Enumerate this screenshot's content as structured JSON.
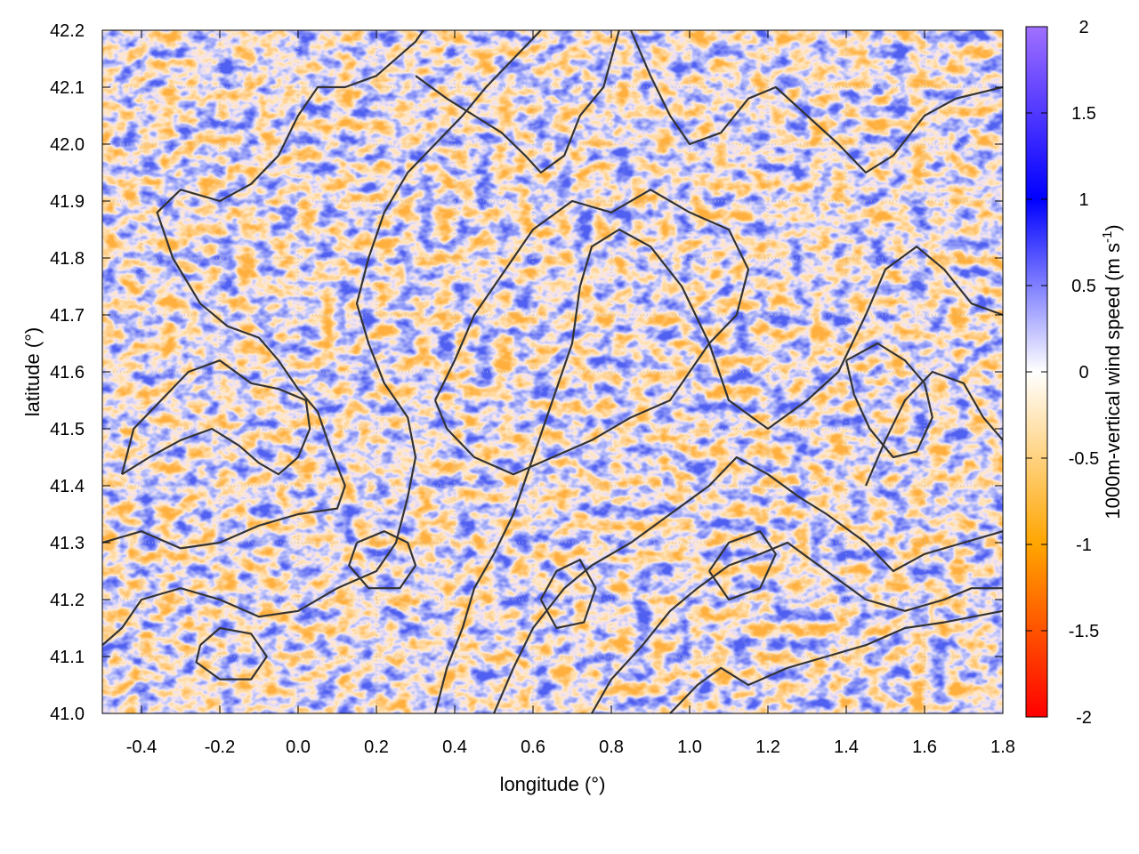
{
  "chart_data": {
    "type": "heatmap",
    "title": "",
    "xlabel": "longitude (°)",
    "ylabel": "latitude (°)",
    "colorbar_label_main": "1000m-vertical wind speed (m s",
    "colorbar_label_sup": "-1",
    "colorbar_label_close": ")",
    "xlim": [
      -0.5,
      1.8
    ],
    "ylim": [
      41.0,
      42.2
    ],
    "clim": [
      -2,
      2
    ],
    "x_ticks": [
      {
        "value": -0.4,
        "label": "-0.4"
      },
      {
        "value": -0.2,
        "label": "-0.2"
      },
      {
        "value": 0.0,
        "label": "0.0"
      },
      {
        "value": 0.2,
        "label": "0.2"
      },
      {
        "value": 0.4,
        "label": "0.4"
      },
      {
        "value": 0.6,
        "label": "0.6"
      },
      {
        "value": 0.8,
        "label": "0.8"
      },
      {
        "value": 1.0,
        "label": "1.0"
      },
      {
        "value": 1.2,
        "label": "1.2"
      },
      {
        "value": 1.4,
        "label": "1.4"
      },
      {
        "value": 1.6,
        "label": "1.6"
      },
      {
        "value": 1.8,
        "label": "1.8"
      }
    ],
    "y_ticks": [
      {
        "value": 41.0,
        "label": "41.0"
      },
      {
        "value": 41.1,
        "label": "41.1"
      },
      {
        "value": 41.2,
        "label": "41.2"
      },
      {
        "value": 41.3,
        "label": "41.3"
      },
      {
        "value": 41.4,
        "label": "41.4"
      },
      {
        "value": 41.5,
        "label": "41.5"
      },
      {
        "value": 41.6,
        "label": "41.6"
      },
      {
        "value": 41.7,
        "label": "41.7"
      },
      {
        "value": 41.8,
        "label": "41.8"
      },
      {
        "value": 41.9,
        "label": "41.9"
      },
      {
        "value": 42.0,
        "label": "42.0"
      },
      {
        "value": 42.1,
        "label": "42.1"
      },
      {
        "value": 42.2,
        "label": "42.2"
      }
    ],
    "colorbar_ticks": [
      {
        "value": 2,
        "label": "2"
      },
      {
        "value": 1.5,
        "label": "1.5"
      },
      {
        "value": 1,
        "label": "1"
      },
      {
        "value": 0.5,
        "label": "0.5"
      },
      {
        "value": 0,
        "label": "0"
      },
      {
        "value": -0.5,
        "label": "-0.5"
      },
      {
        "value": -1,
        "label": "-1"
      },
      {
        "value": -1.5,
        "label": "-1.5"
      },
      {
        "value": -2,
        "label": "-2"
      }
    ],
    "colormap": [
      {
        "value": -2,
        "color": "#ff0000"
      },
      {
        "value": -1,
        "color": "#ffa500"
      },
      {
        "value": 0,
        "color": "#ffffff"
      },
      {
        "value": 1,
        "color": "#0000ff"
      },
      {
        "value": 2,
        "color": "#a070ff"
      }
    ],
    "grid": true,
    "contour_color": "#333333",
    "contours": [
      {
        "points": [
          [
            -0.5,
            41.3
          ],
          [
            -0.4,
            41.32
          ],
          [
            -0.3,
            41.29
          ],
          [
            -0.2,
            41.3
          ],
          [
            -0.1,
            41.33
          ],
          [
            0.0,
            41.35
          ],
          [
            0.1,
            41.36
          ],
          [
            0.12,
            41.4
          ],
          [
            0.08,
            41.47
          ],
          [
            0.05,
            41.53
          ],
          [
            0.0,
            41.57
          ],
          [
            -0.05,
            41.62
          ],
          [
            -0.1,
            41.66
          ],
          [
            -0.18,
            41.68
          ],
          [
            -0.25,
            41.72
          ],
          [
            -0.32,
            41.8
          ],
          [
            -0.36,
            41.88
          ],
          [
            -0.3,
            41.92
          ],
          [
            -0.2,
            41.9
          ],
          [
            -0.12,
            41.93
          ],
          [
            -0.05,
            41.98
          ],
          [
            0.0,
            42.05
          ],
          [
            0.05,
            42.1
          ],
          [
            0.12,
            42.1
          ],
          [
            0.2,
            42.12
          ],
          [
            0.3,
            42.18
          ],
          [
            0.32,
            42.2
          ]
        ]
      },
      {
        "points": [
          [
            -0.5,
            41.12
          ],
          [
            -0.45,
            41.15
          ],
          [
            -0.4,
            41.2
          ],
          [
            -0.3,
            41.22
          ],
          [
            -0.2,
            41.2
          ],
          [
            -0.1,
            41.17
          ],
          [
            0.0,
            41.18
          ],
          [
            0.1,
            41.22
          ],
          [
            0.2,
            41.25
          ],
          [
            0.25,
            41.3
          ],
          [
            0.28,
            41.38
          ],
          [
            0.3,
            41.45
          ],
          [
            0.28,
            41.52
          ],
          [
            0.22,
            41.58
          ],
          [
            0.18,
            41.65
          ],
          [
            0.15,
            41.72
          ],
          [
            0.18,
            41.8
          ],
          [
            0.22,
            41.88
          ],
          [
            0.28,
            41.95
          ],
          [
            0.35,
            42.0
          ],
          [
            0.42,
            42.05
          ],
          [
            0.48,
            42.1
          ],
          [
            0.55,
            42.15
          ],
          [
            0.62,
            42.2
          ]
        ]
      },
      {
        "points": [
          [
            0.35,
            41.0
          ],
          [
            0.38,
            41.08
          ],
          [
            0.42,
            41.15
          ],
          [
            0.45,
            41.22
          ],
          [
            0.5,
            41.28
          ],
          [
            0.55,
            41.35
          ],
          [
            0.6,
            41.45
          ],
          [
            0.65,
            41.55
          ],
          [
            0.7,
            41.65
          ],
          [
            0.72,
            41.75
          ],
          [
            0.75,
            41.82
          ],
          [
            0.82,
            41.85
          ],
          [
            0.9,
            41.82
          ],
          [
            0.98,
            41.75
          ],
          [
            1.05,
            41.65
          ],
          [
            1.1,
            41.55
          ],
          [
            1.2,
            41.5
          ],
          [
            1.3,
            41.55
          ],
          [
            1.38,
            41.6
          ],
          [
            1.45,
            41.7
          ],
          [
            1.5,
            41.78
          ],
          [
            1.58,
            41.82
          ],
          [
            1.65,
            41.78
          ],
          [
            1.72,
            41.72
          ],
          [
            1.8,
            41.7
          ]
        ]
      },
      {
        "points": [
          [
            0.5,
            41.0
          ],
          [
            0.55,
            41.08
          ],
          [
            0.6,
            41.15
          ],
          [
            0.68,
            41.22
          ],
          [
            0.75,
            41.26
          ],
          [
            0.85,
            41.3
          ],
          [
            0.95,
            41.35
          ],
          [
            1.05,
            41.4
          ],
          [
            1.12,
            41.45
          ],
          [
            1.2,
            41.42
          ],
          [
            1.28,
            41.38
          ],
          [
            1.35,
            41.35
          ],
          [
            1.45,
            41.3
          ],
          [
            1.52,
            41.25
          ],
          [
            1.6,
            41.28
          ],
          [
            1.7,
            41.3
          ],
          [
            1.8,
            41.32
          ]
        ]
      },
      {
        "points": [
          [
            0.75,
            41.0
          ],
          [
            0.8,
            41.06
          ],
          [
            0.88,
            41.12
          ],
          [
            0.95,
            41.18
          ],
          [
            1.02,
            41.22
          ],
          [
            1.1,
            41.26
          ],
          [
            1.18,
            41.28
          ],
          [
            1.25,
            41.3
          ],
          [
            1.35,
            41.25
          ],
          [
            1.45,
            41.2
          ],
          [
            1.55,
            41.18
          ],
          [
            1.65,
            41.2
          ],
          [
            1.72,
            41.22
          ],
          [
            1.8,
            41.22
          ]
        ]
      },
      {
        "points": [
          [
            0.95,
            41.0
          ],
          [
            1.02,
            41.05
          ],
          [
            1.08,
            41.08
          ],
          [
            1.15,
            41.05
          ],
          [
            1.25,
            41.08
          ],
          [
            1.35,
            41.1
          ],
          [
            1.45,
            41.12
          ],
          [
            1.55,
            41.15
          ],
          [
            1.65,
            41.16
          ],
          [
            1.8,
            41.18
          ]
        ]
      },
      {
        "points": [
          [
            -0.45,
            41.42
          ],
          [
            -0.38,
            41.45
          ],
          [
            -0.3,
            41.48
          ],
          [
            -0.22,
            41.5
          ],
          [
            -0.15,
            41.47
          ],
          [
            -0.1,
            41.44
          ],
          [
            -0.05,
            41.42
          ],
          [
            0.0,
            41.45
          ],
          [
            0.03,
            41.5
          ],
          [
            0.02,
            41.55
          ],
          [
            -0.05,
            41.57
          ],
          [
            -0.12,
            41.58
          ],
          [
            -0.2,
            41.62
          ],
          [
            -0.28,
            41.6
          ],
          [
            -0.35,
            41.55
          ],
          [
            -0.42,
            41.5
          ],
          [
            -0.45,
            41.42
          ]
        ]
      },
      {
        "points": [
          [
            0.35,
            41.55
          ],
          [
            0.4,
            41.62
          ],
          [
            0.45,
            41.7
          ],
          [
            0.5,
            41.75
          ],
          [
            0.55,
            41.8
          ],
          [
            0.6,
            41.85
          ],
          [
            0.7,
            41.9
          ],
          [
            0.8,
            41.88
          ],
          [
            0.9,
            41.92
          ],
          [
            1.0,
            41.88
          ],
          [
            1.1,
            41.85
          ],
          [
            1.15,
            41.78
          ],
          [
            1.12,
            41.7
          ],
          [
            1.05,
            41.65
          ],
          [
            1.0,
            41.6
          ],
          [
            0.95,
            41.55
          ],
          [
            0.85,
            41.52
          ],
          [
            0.75,
            41.48
          ],
          [
            0.65,
            41.45
          ],
          [
            0.55,
            41.42
          ],
          [
            0.45,
            41.45
          ],
          [
            0.38,
            41.5
          ],
          [
            0.35,
            41.55
          ]
        ]
      },
      {
        "points": [
          [
            0.85,
            42.2
          ],
          [
            0.9,
            42.12
          ],
          [
            0.95,
            42.05
          ],
          [
            1.0,
            42.0
          ],
          [
            1.08,
            42.02
          ],
          [
            1.15,
            42.08
          ],
          [
            1.22,
            42.1
          ],
          [
            1.3,
            42.05
          ],
          [
            1.38,
            42.0
          ],
          [
            1.45,
            41.95
          ],
          [
            1.52,
            41.98
          ],
          [
            1.6,
            42.05
          ],
          [
            1.68,
            42.08
          ],
          [
            1.8,
            42.1
          ]
        ]
      },
      {
        "points": [
          [
            0.3,
            42.12
          ],
          [
            0.38,
            42.08
          ],
          [
            0.45,
            42.05
          ],
          [
            0.52,
            42.02
          ],
          [
            0.58,
            41.98
          ],
          [
            0.62,
            41.95
          ],
          [
            0.68,
            41.98
          ],
          [
            0.72,
            42.05
          ],
          [
            0.78,
            42.1
          ],
          [
            0.8,
            42.15
          ],
          [
            0.82,
            42.2
          ]
        ]
      },
      {
        "points": [
          [
            1.45,
            41.4
          ],
          [
            1.5,
            41.48
          ],
          [
            1.55,
            41.55
          ],
          [
            1.62,
            41.6
          ],
          [
            1.7,
            41.58
          ],
          [
            1.75,
            41.52
          ],
          [
            1.8,
            41.48
          ]
        ]
      },
      {
        "points": [
          [
            1.4,
            41.62
          ],
          [
            1.48,
            41.65
          ],
          [
            1.55,
            41.62
          ],
          [
            1.6,
            41.58
          ],
          [
            1.62,
            41.52
          ],
          [
            1.58,
            41.46
          ],
          [
            1.52,
            41.45
          ],
          [
            1.46,
            41.5
          ],
          [
            1.42,
            41.56
          ],
          [
            1.4,
            41.62
          ]
        ]
      },
      {
        "points": [
          [
            0.15,
            41.3
          ],
          [
            0.22,
            41.32
          ],
          [
            0.28,
            41.3
          ],
          [
            0.3,
            41.26
          ],
          [
            0.26,
            41.22
          ],
          [
            0.18,
            41.22
          ],
          [
            0.13,
            41.26
          ],
          [
            0.15,
            41.3
          ]
        ]
      },
      {
        "points": [
          [
            -0.25,
            41.12
          ],
          [
            -0.2,
            41.15
          ],
          [
            -0.12,
            41.14
          ],
          [
            -0.08,
            41.1
          ],
          [
            -0.12,
            41.06
          ],
          [
            -0.2,
            41.06
          ],
          [
            -0.26,
            41.09
          ],
          [
            -0.25,
            41.12
          ]
        ]
      },
      {
        "points": [
          [
            0.62,
            41.2
          ],
          [
            0.66,
            41.25
          ],
          [
            0.72,
            41.27
          ],
          [
            0.76,
            41.22
          ],
          [
            0.73,
            41.16
          ],
          [
            0.66,
            41.15
          ],
          [
            0.62,
            41.2
          ]
        ]
      },
      {
        "points": [
          [
            1.05,
            41.25
          ],
          [
            1.1,
            41.3
          ],
          [
            1.18,
            41.32
          ],
          [
            1.22,
            41.28
          ],
          [
            1.18,
            41.22
          ],
          [
            1.1,
            41.2
          ],
          [
            1.05,
            41.25
          ]
        ]
      }
    ]
  }
}
